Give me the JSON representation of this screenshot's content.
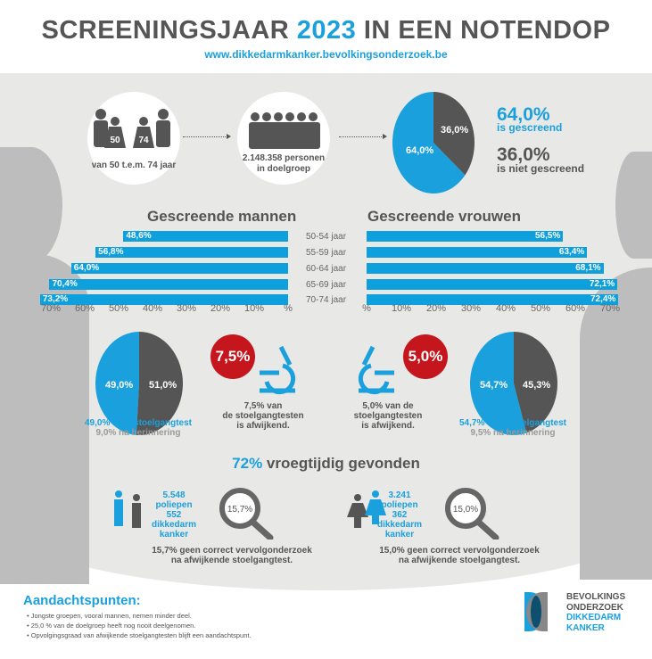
{
  "header": {
    "title_pre": "SCREENINGSJAAR",
    "title_year": "2023",
    "title_post": "IN EEN NOTENDOP",
    "url": "www.dikkedarmkanker.bevolkingsonderzoek.be"
  },
  "top": {
    "age_icon_from": "50",
    "age_icon_to": "74",
    "age_label": "van 50 t.e.m. 74 jaar",
    "target_label_1": "2.148.358 personen",
    "target_label_2": "in doelgroep",
    "screened_pct": "64,0%",
    "screened_label": "is gescreend",
    "not_screened_pct": "36,0%",
    "not_screened_label": "is niet gescreend"
  },
  "colors": {
    "blue": "#1aa0dc",
    "gray": "#555555",
    "red": "#c5161d",
    "bg": "#e8e8e7"
  },
  "chart_data": [
    {
      "type": "pie",
      "title": "Screening participation",
      "slices": [
        {
          "label": "64,0%",
          "name": "is gescreend",
          "value": 64.0,
          "color": "#1aa0dc"
        },
        {
          "label": "36,0%",
          "name": "is niet gescreend",
          "value": 36.0,
          "color": "#555555"
        }
      ]
    },
    {
      "type": "bar",
      "orientation": "horizontal",
      "title": "Gescreende mannen",
      "categories": [
        "50-54 jaar",
        "55-59 jaar",
        "60-64 jaar",
        "65-69 jaar",
        "70-74 jaar"
      ],
      "values": [
        48.6,
        56.8,
        64.0,
        70.4,
        73.2
      ],
      "labels": [
        "48,6%",
        "56,8%",
        "64,0%",
        "70,4%",
        "73,2%"
      ],
      "xlim": [
        0,
        70
      ],
      "ticks": [
        "70%",
        "60%",
        "50%",
        "40%",
        "30%",
        "20%",
        "10%",
        "%"
      ],
      "direction": "right-to-left"
    },
    {
      "type": "bar",
      "orientation": "horizontal",
      "title": "Gescreende vrouwen",
      "categories": [
        "50-54 jaar",
        "55-59 jaar",
        "60-64 jaar",
        "65-69 jaar",
        "70-74 jaar"
      ],
      "values": [
        56.5,
        63.4,
        68.1,
        72.1,
        72.4
      ],
      "labels": [
        "56,5%",
        "63,4%",
        "68,1%",
        "72,1%",
        "72,4%"
      ],
      "xlim": [
        0,
        70
      ],
      "ticks": [
        "%",
        "10%",
        "20%",
        "30%",
        "40%",
        "50%",
        "60%",
        "70%"
      ],
      "direction": "left-to-right"
    },
    {
      "type": "pie",
      "title": "Mannen stoelgangtest",
      "slices": [
        {
          "label": "49,0%",
          "value": 49.0,
          "color": "#1aa0dc"
        },
        {
          "label": "51,0%",
          "value": 51.0,
          "color": "#555555"
        }
      ]
    },
    {
      "type": "pie",
      "title": "Vrouwen stoelgangtest",
      "slices": [
        {
          "label": "54,7%",
          "value": 54.7,
          "color": "#1aa0dc"
        },
        {
          "label": "45,3%",
          "value": 45.3,
          "color": "#555555"
        }
      ]
    }
  ],
  "men": {
    "test_line1": "49,0% doet stoelgangtest",
    "test_line2": "9,0% na herinnering",
    "abnormal_pct": "7,5%",
    "abnormal_l1": "7,5% van",
    "abnormal_l2": "de stoelgangtesten",
    "abnormal_l3": "is afwijkend.",
    "polyps_n": "5.548",
    "polyps_l": "poliepen",
    "cancer_n": "552",
    "cancer_l1": "dikkedarm",
    "cancer_l2": "kanker",
    "follow_pct": "15,7%",
    "follow_l1": "15,7% geen correct vervolgonderzoek",
    "follow_l2": "na afwijkende stoelgangtest."
  },
  "women": {
    "test_line1": "54,7% doet stoelgangtest",
    "test_line2": "9,5% na herinnering",
    "abnormal_pct": "5,0%",
    "abnormal_l1": "5,0% van de",
    "abnormal_l2": "stoelgangtesten",
    "abnormal_l3": "is afwijkend.",
    "polyps_n": "3.241",
    "polyps_l": "poliepen",
    "cancer_n": "362",
    "cancer_l1": "dikkedarm",
    "cancer_l2": "kanker",
    "follow_pct": "15,0%",
    "follow_l1": "15,0% geen correct vervolgonderzoek",
    "follow_l2": "na afwijkende stoelgangtest."
  },
  "early": {
    "pct": "72%",
    "label": "vroegtijdig gevonden"
  },
  "attention": {
    "title": "Aandachtspunten:",
    "items": [
      "• Jongste groepen, vooral mannen, nemen minder deel.",
      "• 25,0 % van de doelgroep heeft nog nooit deelgenomen.",
      "• Opvolgingsgraad van afwijkende stoelgangtesten blijft een aandachtspunt."
    ]
  },
  "logo": {
    "l1": "BEVOLKINGS",
    "l2": "ONDERZOEK",
    "l3": "DIKKEDARM",
    "l4": "KANKER"
  }
}
